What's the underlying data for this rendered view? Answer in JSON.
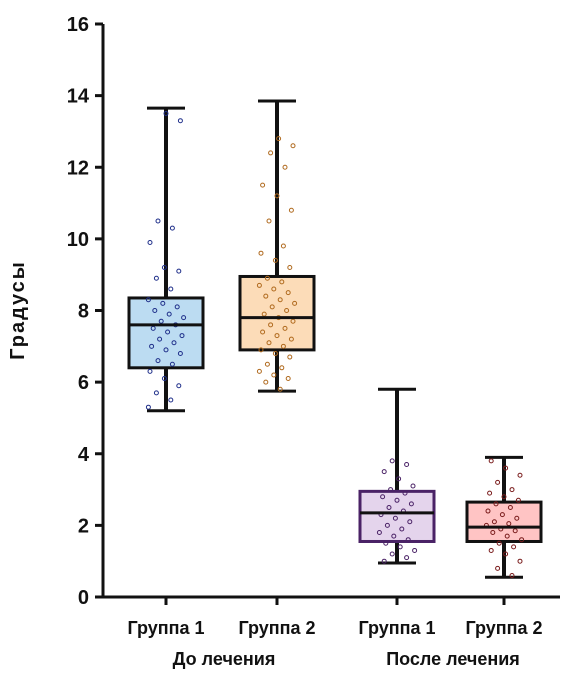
{
  "chart_data": {
    "type": "box",
    "ylabel": "Градусы",
    "ylim": [
      0,
      16
    ],
    "yticks": [
      "0",
      "2",
      "4",
      "6",
      "8",
      "10",
      "12",
      "14",
      "16"
    ],
    "categories": [
      "Группа 1",
      "Группа 2",
      "Группа 1",
      "Группа 2"
    ],
    "groups": [
      "До лечения",
      "После лечения"
    ],
    "series": [
      {
        "group": 0,
        "category": 0,
        "min": 5.2,
        "q1": 6.4,
        "median": 7.6,
        "q3": 8.35,
        "max": 13.65,
        "color": "#1f2f8a",
        "fill": "#bcdcf2",
        "points": [
          5.3,
          5.5,
          5.7,
          5.9,
          6.1,
          6.3,
          6.5,
          6.6,
          6.8,
          6.9,
          7.0,
          7.1,
          7.2,
          7.3,
          7.4,
          7.5,
          7.6,
          7.7,
          7.8,
          7.9,
          8.0,
          8.1,
          8.2,
          8.3,
          8.6,
          8.9,
          9.1,
          9.2,
          9.9,
          10.3,
          10.5,
          13.3,
          13.5
        ]
      },
      {
        "group": 0,
        "category": 1,
        "min": 5.75,
        "q1": 6.9,
        "median": 7.8,
        "q3": 8.95,
        "max": 13.85,
        "color": "#b06a1e",
        "fill": "#fcdcb8",
        "points": [
          5.8,
          6.0,
          6.1,
          6.2,
          6.3,
          6.4,
          6.5,
          6.7,
          6.8,
          6.9,
          7.0,
          7.1,
          7.2,
          7.3,
          7.4,
          7.5,
          7.6,
          7.7,
          7.8,
          7.9,
          8.0,
          8.1,
          8.2,
          8.3,
          8.4,
          8.5,
          8.6,
          8.7,
          8.8,
          8.9,
          9.2,
          9.4,
          9.6,
          9.8,
          10.5,
          10.8,
          11.2,
          11.5,
          12.0,
          12.4,
          12.6,
          12.8
        ]
      },
      {
        "group": 1,
        "category": 0,
        "min": 0.95,
        "q1": 1.55,
        "median": 2.35,
        "q3": 2.95,
        "max": 5.8,
        "color": "#4a2266",
        "fill": "#e4d4ec",
        "points": [
          1.0,
          1.1,
          1.2,
          1.3,
          1.4,
          1.5,
          1.6,
          1.7,
          1.8,
          1.9,
          2.0,
          2.1,
          2.2,
          2.3,
          2.4,
          2.5,
          2.6,
          2.7,
          2.8,
          2.9,
          3.0,
          3.1,
          3.3,
          3.5,
          3.7,
          3.8
        ]
      },
      {
        "group": 1,
        "category": 1,
        "min": 0.55,
        "q1": 1.55,
        "median": 1.95,
        "q3": 2.65,
        "max": 3.9,
        "color": "#7a1c1c",
        "fill": "#ffc4c4",
        "points": [
          0.6,
          0.8,
          1.0,
          1.2,
          1.3,
          1.4,
          1.5,
          1.6,
          1.7,
          1.8,
          1.85,
          1.9,
          2.0,
          2.05,
          2.1,
          2.2,
          2.3,
          2.4,
          2.5,
          2.6,
          2.7,
          2.8,
          2.9,
          3.0,
          3.2,
          3.4,
          3.6,
          3.8
        ]
      }
    ],
    "grid": false,
    "legend": "none"
  }
}
